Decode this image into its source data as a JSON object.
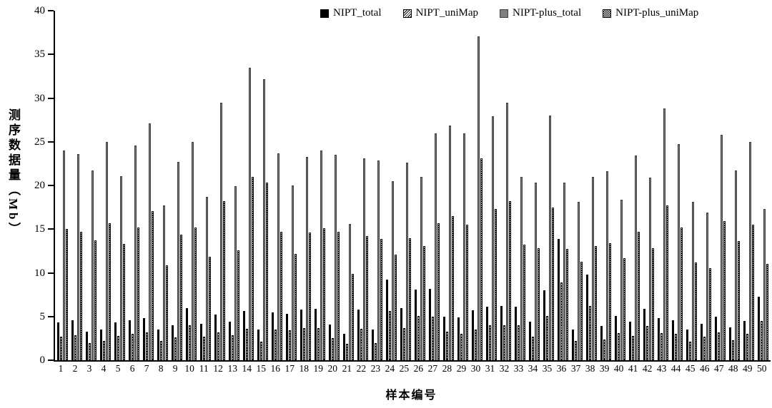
{
  "chart_data": {
    "type": "bar",
    "title": "",
    "xlabel": "样本编号",
    "ylabel": "测序数据量（Mb）",
    "ylim": [
      0,
      40
    ],
    "yticks": [
      0,
      5,
      10,
      15,
      20,
      25,
      30,
      35,
      40
    ],
    "grid": false,
    "legend_position": "top",
    "categories": [
      "1",
      "2",
      "3",
      "4",
      "5",
      "6",
      "7",
      "8",
      "9",
      "10",
      "11",
      "12",
      "13",
      "14",
      "15",
      "16",
      "17",
      "18",
      "19",
      "20",
      "21",
      "22",
      "23",
      "24",
      "25",
      "26",
      "27",
      "28",
      "29",
      "30",
      "31",
      "32",
      "33",
      "34",
      "35",
      "36",
      "37",
      "38",
      "39",
      "40",
      "41",
      "42",
      "43",
      "44",
      "45",
      "46",
      "47",
      "48",
      "49",
      "50"
    ],
    "series": [
      {
        "name": "NIPT_total",
        "style": "solid-black",
        "color": "#000000",
        "values": [
          4.3,
          4.6,
          3.3,
          3.5,
          4.3,
          4.6,
          4.8,
          3.5,
          4.0,
          6.0,
          4.2,
          5.2,
          4.4,
          5.6,
          3.5,
          5.5,
          5.3,
          5.8,
          5.9,
          4.1,
          3.0,
          5.8,
          3.5,
          9.2,
          6.0,
          8.1,
          8.2,
          5.0,
          4.9,
          5.7,
          6.1,
          6.2,
          6.1,
          4.4,
          8.0,
          13.9,
          3.5,
          9.8,
          3.9,
          5.1,
          4.4,
          5.9,
          4.8,
          4.6,
          3.5,
          4.2,
          5.0,
          3.8,
          4.5,
          7.3
        ]
      },
      {
        "name": "NIPT_uniMap",
        "style": "diagonal-hatch",
        "color": "#000000",
        "values": [
          2.7,
          2.9,
          2.0,
          2.2,
          2.8,
          3.0,
          3.2,
          2.2,
          2.6,
          4.0,
          2.7,
          3.2,
          2.9,
          3.6,
          2.1,
          3.5,
          3.4,
          3.7,
          3.7,
          2.5,
          1.9,
          3.6,
          2.0,
          5.6,
          3.7,
          5.1,
          5.0,
          3.3,
          3.0,
          3.5,
          4.0,
          4.0,
          4.0,
          2.7,
          5.1,
          8.9,
          2.2,
          6.2,
          2.4,
          3.1,
          2.8,
          3.9,
          3.1,
          3.0,
          2.1,
          2.7,
          3.2,
          2.3,
          3.0,
          4.5
        ]
      },
      {
        "name": "NIPT-plus_total",
        "style": "solid-gray",
        "color": "#7f7f7f",
        "values": [
          24.0,
          23.6,
          21.7,
          25.0,
          21.1,
          24.6,
          27.1,
          17.7,
          22.7,
          25.0,
          18.7,
          29.5,
          19.9,
          33.5,
          32.2,
          23.7,
          20.0,
          23.3,
          24.0,
          23.5,
          15.6,
          23.1,
          22.9,
          20.5,
          22.6,
          21.0,
          26.0,
          26.9,
          26.0,
          37.1,
          27.9,
          29.5,
          21.0,
          20.3,
          28.0,
          20.3,
          18.1,
          21.0,
          21.6,
          18.4,
          23.4,
          20.9,
          28.8,
          24.7,
          18.1,
          16.9,
          25.8,
          21.7,
          25.0,
          17.3
        ]
      },
      {
        "name": "NIPT-plus_uniMap",
        "style": "checkerboard",
        "color": "#000000",
        "values": [
          15.0,
          14.7,
          13.7,
          15.7,
          13.3,
          15.2,
          17.1,
          10.9,
          14.4,
          15.2,
          11.8,
          18.2,
          12.6,
          21.0,
          20.3,
          14.7,
          12.2,
          14.6,
          15.1,
          14.7,
          9.9,
          14.2,
          13.9,
          12.1,
          14.0,
          13.1,
          15.7,
          16.5,
          15.5,
          23.1,
          17.3,
          18.2,
          13.2,
          12.8,
          17.5,
          12.7,
          11.3,
          13.1,
          13.4,
          11.7,
          14.7,
          12.8,
          17.7,
          15.2,
          11.2,
          10.5,
          15.9,
          13.6,
          15.5,
          11.0
        ]
      }
    ]
  }
}
